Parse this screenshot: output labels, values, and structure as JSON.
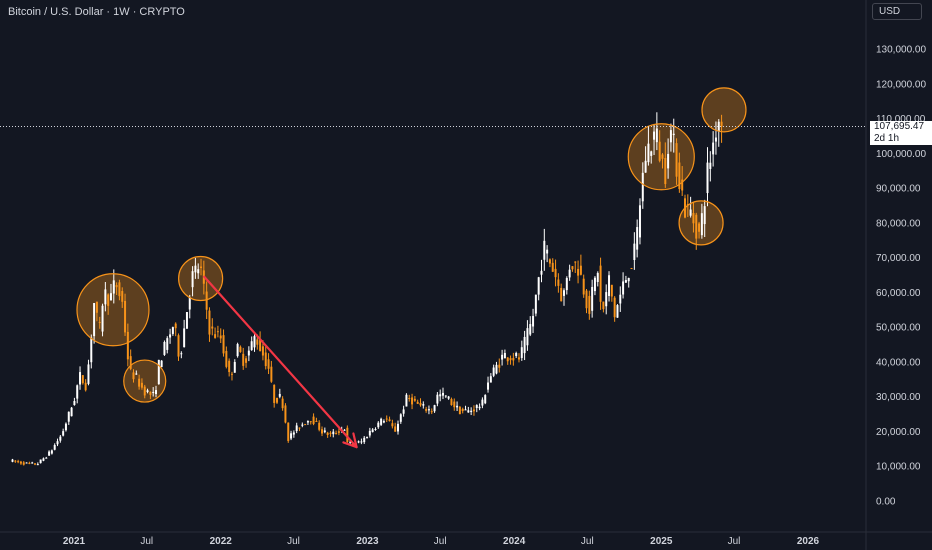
{
  "header": {
    "symbol_title": "Bitcoin / U.S. Dollar · 1W · CRYPTO",
    "currency": "USD"
  },
  "last_price": {
    "value_label": "107,695.47",
    "countdown": "2d 1h",
    "value": 107695.47
  },
  "colors": {
    "background": "#131722",
    "up_candle": "#ffffff",
    "down_candle": "#f7931a",
    "highlight_fill": "#f7931a",
    "arrow": "#f23645",
    "axis_text": "#d1d4dc"
  },
  "chart_data": {
    "type": "candlestick",
    "title": "Bitcoin / U.S. Dollar · 1W · CRYPTO",
    "xlabel": "",
    "ylabel": "",
    "ylim": [
      -8000,
      142000
    ],
    "grid": false,
    "x_ticks": [
      {
        "label": "2021",
        "date": "2021-01-01",
        "bold": true
      },
      {
        "label": "Jul",
        "date": "2021-07-01",
        "bold": false
      },
      {
        "label": "2022",
        "date": "2022-01-01",
        "bold": true
      },
      {
        "label": "Jul",
        "date": "2022-07-01",
        "bold": false
      },
      {
        "label": "2023",
        "date": "2023-01-01",
        "bold": true
      },
      {
        "label": "Jul",
        "date": "2023-07-01",
        "bold": false
      },
      {
        "label": "2024",
        "date": "2024-01-01",
        "bold": true
      },
      {
        "label": "Jul",
        "date": "2024-07-01",
        "bold": false
      },
      {
        "label": "2025",
        "date": "2025-01-01",
        "bold": true
      },
      {
        "label": "Jul",
        "date": "2025-07-01",
        "bold": false
      },
      {
        "label": "2026",
        "date": "2026-01-01",
        "bold": true
      }
    ],
    "y_ticks": [
      {
        "label": "0.00",
        "value": 0
      },
      {
        "label": "10,000.00",
        "value": 10000
      },
      {
        "label": "20,000.00",
        "value": 20000
      },
      {
        "label": "30,000.00",
        "value": 30000
      },
      {
        "label": "40,000.00",
        "value": 40000
      },
      {
        "label": "50,000.00",
        "value": 50000
      },
      {
        "label": "60,000.00",
        "value": 60000
      },
      {
        "label": "70,000.00",
        "value": 70000
      },
      {
        "label": "80,000.00",
        "value": 80000
      },
      {
        "label": "90,000.00",
        "value": 90000
      },
      {
        "label": "100,000.00",
        "value": 100000
      },
      {
        "label": "110,000.00",
        "value": 110000
      },
      {
        "label": "120,000.00",
        "value": 120000
      },
      {
        "label": "130,000.00",
        "value": 130000
      }
    ],
    "price_path": [
      [
        "2020-08-01",
        11500
      ],
      [
        "2020-09-01",
        10800
      ],
      [
        "2020-10-01",
        10600
      ],
      [
        "2020-11-01",
        13800
      ],
      [
        "2020-12-01",
        19000
      ],
      [
        "2021-01-01",
        29000
      ],
      [
        "2021-01-15",
        36000
      ],
      [
        "2021-02-01",
        33000
      ],
      [
        "2021-02-20",
        57000
      ],
      [
        "2021-03-05",
        48000
      ],
      [
        "2021-03-15",
        60000
      ],
      [
        "2021-04-01",
        58000
      ],
      [
        "2021-04-14",
        63000
      ],
      [
        "2021-05-01",
        57000
      ],
      [
        "2021-05-19",
        37000
      ],
      [
        "2021-06-01",
        36000
      ],
      [
        "2021-06-22",
        32000
      ],
      [
        "2021-07-20",
        30000
      ],
      [
        "2021-08-01",
        40000
      ],
      [
        "2021-09-06",
        51000
      ],
      [
        "2021-09-21",
        41000
      ],
      [
        "2021-10-20",
        64000
      ],
      [
        "2021-11-10",
        68000
      ],
      [
        "2021-12-05",
        49000
      ],
      [
        "2022-01-01",
        47000
      ],
      [
        "2022-01-24",
        35000
      ],
      [
        "2022-02-10",
        44000
      ],
      [
        "2022-03-01",
        40000
      ],
      [
        "2022-03-28",
        47500
      ],
      [
        "2022-05-01",
        38000
      ],
      [
        "2022-05-12",
        29000
      ],
      [
        "2022-06-01",
        30000
      ],
      [
        "2022-06-18",
        18000
      ],
      [
        "2022-07-10",
        21000
      ],
      [
        "2022-08-14",
        24000
      ],
      [
        "2022-09-10",
        20000
      ],
      [
        "2022-10-01",
        19000
      ],
      [
        "2022-11-05",
        21000
      ],
      [
        "2022-11-10",
        16500
      ],
      [
        "2022-12-15",
        16800
      ],
      [
        "2023-01-15",
        21000
      ],
      [
        "2023-02-15",
        24000
      ],
      [
        "2023-03-10",
        20000
      ],
      [
        "2023-04-10",
        30000
      ],
      [
        "2023-05-15",
        27000
      ],
      [
        "2023-06-10",
        26000
      ],
      [
        "2023-06-25",
        30500
      ],
      [
        "2023-07-15",
        30000
      ],
      [
        "2023-08-17",
        26000
      ],
      [
        "2023-09-10",
        25800
      ],
      [
        "2023-10-15",
        28000
      ],
      [
        "2023-10-25",
        34000
      ],
      [
        "2023-12-05",
        42000
      ],
      [
        "2024-01-15",
        41000
      ],
      [
        "2024-02-15",
        52000
      ],
      [
        "2024-03-14",
        73000
      ],
      [
        "2024-04-10",
        66000
      ],
      [
        "2024-05-01",
        58000
      ],
      [
        "2024-05-20",
        69000
      ],
      [
        "2024-06-10",
        67000
      ],
      [
        "2024-07-05",
        55000
      ],
      [
        "2024-07-29",
        68000
      ],
      [
        "2024-08-05",
        52000
      ],
      [
        "2024-08-25",
        64000
      ],
      [
        "2024-09-06",
        53000
      ],
      [
        "2024-10-01",
        63000
      ],
      [
        "2024-10-29",
        72000
      ],
      [
        "2024-11-12",
        90000
      ],
      [
        "2024-11-22",
        99000
      ],
      [
        "2024-12-17",
        106000
      ],
      [
        "2025-01-10",
        94000
      ],
      [
        "2025-01-21",
        108000
      ],
      [
        "2025-02-10",
        96000
      ],
      [
        "2025-03-01",
        84000
      ],
      [
        "2025-03-15",
        83000
      ],
      [
        "2025-04-07",
        76000
      ],
      [
        "2025-04-25",
        94000
      ],
      [
        "2025-05-10",
        103000
      ],
      [
        "2025-05-22",
        111000
      ],
      [
        "2025-06-01",
        107695
      ]
    ],
    "highlight_circles": [
      {
        "date": "2021-04-08",
        "value": 55000
      },
      {
        "date": "2021-06-26",
        "value": 34500
      },
      {
        "date": "2021-11-12",
        "value": 64000
      },
      {
        "date": "2025-01-01",
        "value": 99000
      },
      {
        "date": "2025-04-10",
        "value": 80000
      },
      {
        "date": "2025-06-06",
        "value": 112500
      }
    ],
    "arrow": {
      "start_date": "2021-11-21",
      "start_value": 64500,
      "end_date": "2022-12-05",
      "end_value": 15500
    },
    "last_price_value": 107695.47
  }
}
